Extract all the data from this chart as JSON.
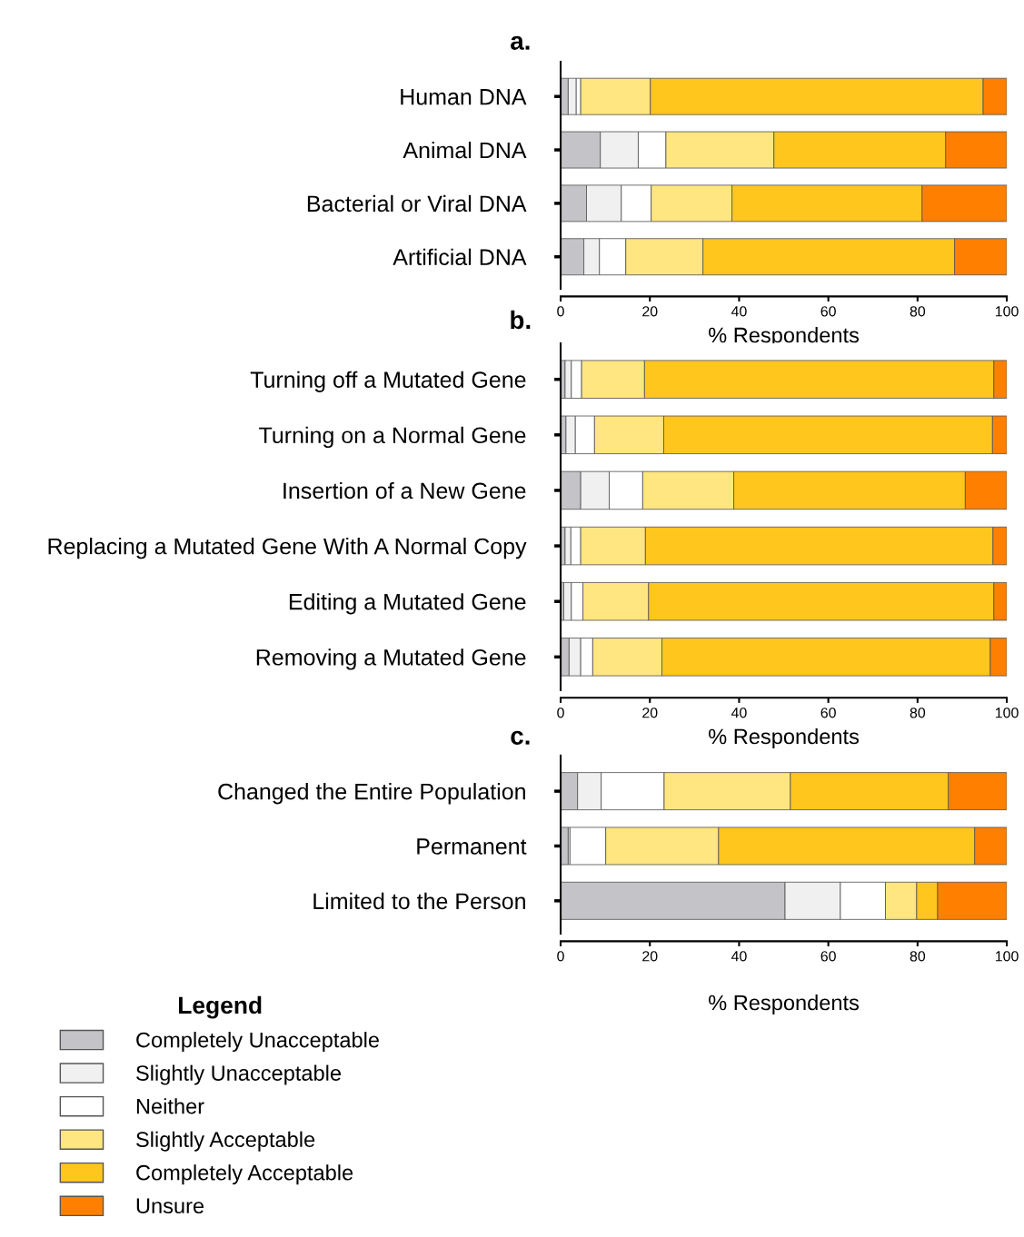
{
  "chart_data": [
    {
      "type": "bar",
      "orientation": "horizontal",
      "stacked": true,
      "title": "a.",
      "xlabel": "% Respondents",
      "xlim": [
        0,
        100
      ],
      "xticks": [
        0,
        20,
        40,
        60,
        80,
        100
      ],
      "legend": "bottom left",
      "legend_title": "Legend",
      "categories": [
        "Human DNA",
        "Animal DNA",
        "Bacterial or Viral DNA",
        "Artificial DNA"
      ],
      "series": [
        {
          "name": "Completely Unacceptable",
          "color": "#c4c4c8",
          "values": [
            1.7,
            8.9,
            5.8,
            5.2
          ]
        },
        {
          "name": "Slightly Unacceptable",
          "color": "#f0f0f0",
          "values": [
            1.8,
            8.5,
            7.8,
            3.5
          ]
        },
        {
          "name": "Neither",
          "color": "#ffffff",
          "values": [
            1.0,
            6.2,
            6.7,
            5.9
          ]
        },
        {
          "name": "Slightly Acceptable",
          "color": "#ffe680",
          "values": [
            15.6,
            24.2,
            18.1,
            17.3
          ]
        },
        {
          "name": "Completely Acceptable",
          "color": "#ffc61e",
          "values": [
            74.6,
            38.5,
            42.6,
            56.4
          ]
        },
        {
          "name": "Unsure",
          "color": "#ff8000",
          "values": [
            5.3,
            13.7,
            19.0,
            11.7
          ]
        }
      ]
    },
    {
      "type": "bar",
      "orientation": "horizontal",
      "stacked": true,
      "title": "b.",
      "xlabel": "% Respondents",
      "xlim": [
        0,
        100
      ],
      "xticks": [
        0,
        20,
        40,
        60,
        80,
        100
      ],
      "categories": [
        "Turning off a Mutated Gene",
        "Turning on a Normal Gene",
        "Insertion of a New Gene",
        "Replacing a Mutated Gene With A Normal Copy",
        "Editing a Mutated Gene",
        "Removing a Mutated Gene"
      ],
      "series": [
        {
          "color": "#c4c4c8",
          "values": [
            1.0,
            1.2,
            4.5,
            1.0,
            0.7,
            1.9
          ]
        },
        {
          "color": "#f0f0f0",
          "values": [
            1.4,
            2.1,
            6.4,
            1.3,
            1.7,
            2.6
          ]
        },
        {
          "color": "#ffffff",
          "values": [
            2.3,
            4.3,
            7.5,
            2.2,
            2.6,
            2.7
          ]
        },
        {
          "color": "#ffe680",
          "values": [
            14.1,
            15.5,
            20.4,
            14.5,
            14.7,
            15.5
          ]
        },
        {
          "color": "#ffc61e",
          "values": [
            78.3,
            73.7,
            51.9,
            77.9,
            77.4,
            73.6
          ]
        },
        {
          "color": "#ff8000",
          "values": [
            2.9,
            3.2,
            9.3,
            3.1,
            2.9,
            3.7
          ]
        }
      ]
    },
    {
      "type": "bar",
      "orientation": "horizontal",
      "stacked": true,
      "title": "c.",
      "xlabel": "% Respondents",
      "xlim": [
        0,
        100
      ],
      "xticks": [
        0,
        20,
        40,
        60,
        80,
        100
      ],
      "categories": [
        "Changed the Entire Population",
        "Permanent",
        "Limited to the Person"
      ],
      "series": [
        {
          "color": "#c4c4c8",
          "values": [
            3.8,
            1.7,
            50.3
          ]
        },
        {
          "color": "#f0f0f0",
          "values": [
            5.3,
            0.4,
            12.4
          ]
        },
        {
          "color": "#ffffff",
          "values": [
            14.1,
            8.0,
            10.1
          ]
        },
        {
          "color": "#ffe680",
          "values": [
            28.3,
            25.3,
            7.0
          ]
        },
        {
          "color": "#ffc61e",
          "values": [
            35.4,
            57.4,
            4.7
          ]
        },
        {
          "color": "#ff8000",
          "values": [
            13.1,
            7.2,
            15.5
          ]
        }
      ]
    }
  ]
}
